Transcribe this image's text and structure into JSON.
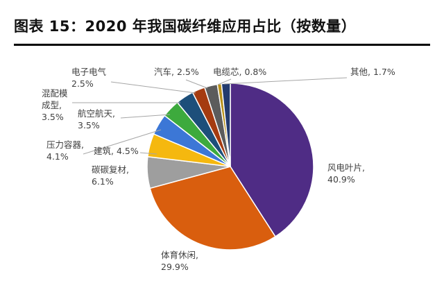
{
  "title": "图表 15：2020 年我国碳纤维应用占比（按数量）",
  "chart_data": {
    "type": "pie",
    "title": "图表 15：2020 年我国碳纤维应用占比（按数量）",
    "start": "12 o'clock, clockwise",
    "slices": [
      {
        "label": "风电叶片",
        "value": 40.9,
        "color": "#4f2c85",
        "lines": [
          "风电叶片,",
          "40.9%"
        ]
      },
      {
        "label": "体育休闲",
        "value": 29.9,
        "color": "#d95e0e",
        "lines": [
          "体育休闲,",
          "29.9%"
        ]
      },
      {
        "label": "碳碳复材",
        "value": 6.1,
        "color": "#9e9e9e",
        "lines": [
          "碳碳复材,",
          "6.1%"
        ]
      },
      {
        "label": "建筑",
        "value": 4.5,
        "color": "#f5b80f",
        "lines": [
          "建筑, 4.5%"
        ]
      },
      {
        "label": "压力容器",
        "value": 4.1,
        "color": "#3c77d6",
        "lines": [
          "压力容器,",
          "4.1%"
        ]
      },
      {
        "label": "航空航天",
        "value": 3.5,
        "color": "#3daa3d",
        "lines": [
          "航空航天,",
          "3.5%"
        ]
      },
      {
        "label": "混配模成型",
        "value": 3.5,
        "color": "#1d4f7a",
        "lines": [
          "混配模",
          "成型,",
          "3.5%"
        ]
      },
      {
        "label": "电子电气",
        "value": 2.5,
        "color": "#a53b10",
        "lines": [
          "电子电气",
          "2.5%"
        ]
      },
      {
        "label": "汽车",
        "value": 2.5,
        "color": "#5c5c5c",
        "lines": [
          "汽车, 2.5%"
        ]
      },
      {
        "label": "电缆芯",
        "value": 0.8,
        "color": "#b8901a",
        "lines": [
          "电缆芯, 0.8%"
        ]
      },
      {
        "label": "其他",
        "value": 1.7,
        "color": "#233b6e",
        "lines": [
          "其他, 1.7%"
        ]
      }
    ]
  }
}
